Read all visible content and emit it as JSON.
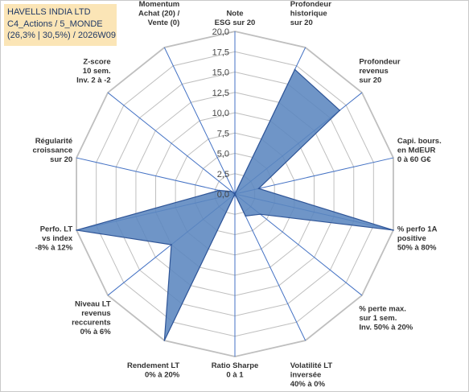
{
  "header": {
    "line1": "HAVELLS INDIA LTD",
    "line2": "C4_Actions / 5_MONDE",
    "line3": "(26,3% | 30,5%) / 2026W09"
  },
  "colors": {
    "fill": "#5b86bf",
    "stroke": "#2f5597",
    "grid": "#bfbfbf",
    "spoke": "#4472c4",
    "title_bg": "#fbe5b6"
  },
  "chart_data": {
    "type": "radar",
    "title": "",
    "rmin": 0,
    "rmax": 20,
    "ticks": [
      "0,0",
      "2,5",
      "5,0",
      "7,5",
      "10,0",
      "12,5",
      "15,0",
      "17,5",
      "20,0"
    ],
    "grid": true,
    "axes": [
      {
        "label": [
          "Note",
          "ESG sur 20"
        ],
        "value": 0
      },
      {
        "label": [
          "Profondeur",
          "historique",
          "sur 20"
        ],
        "value": 17
      },
      {
        "label": [
          "Profondeur",
          "revenus",
          "sur 20"
        ],
        "value": 16.5
      },
      {
        "label": [
          "Capi. bours.",
          "en MdEUR",
          "0 à 60 G€"
        ],
        "value": 3
      },
      {
        "label": [
          "% perfo 1A",
          "positive",
          "50% à 80%"
        ],
        "value": 20
      },
      {
        "label": [
          "% perte max.",
          "sur 1 sem.",
          "Inv. 50% à 20%"
        ],
        "value": 4
      },
      {
        "label": [
          "Volatilité LT",
          "inversée",
          "40% à 0%"
        ],
        "value": 3
      },
      {
        "label": [
          "Ratio Sharpe",
          "0 à 1"
        ],
        "value": 0
      },
      {
        "label": [
          "Rendement LT",
          "0% à 20%"
        ],
        "value": 20
      },
      {
        "label": [
          "Niveau LT",
          "revenus",
          "reccurents",
          "0% à 6%"
        ],
        "value": 10
      },
      {
        "label": [
          "Perfo. LT",
          "vs index",
          "-8% à 12%"
        ],
        "value": 20
      },
      {
        "label": [
          "Régularité",
          "croissance",
          "sur 20"
        ],
        "value": 2
      },
      {
        "label": [
          "Z-score",
          "10 sem.",
          "Inv. 2 à -2"
        ],
        "value": 0.5
      },
      {
        "label": [
          "Momentum",
          "Achat (20) /",
          "Vente (0)"
        ],
        "value": 0
      }
    ]
  }
}
